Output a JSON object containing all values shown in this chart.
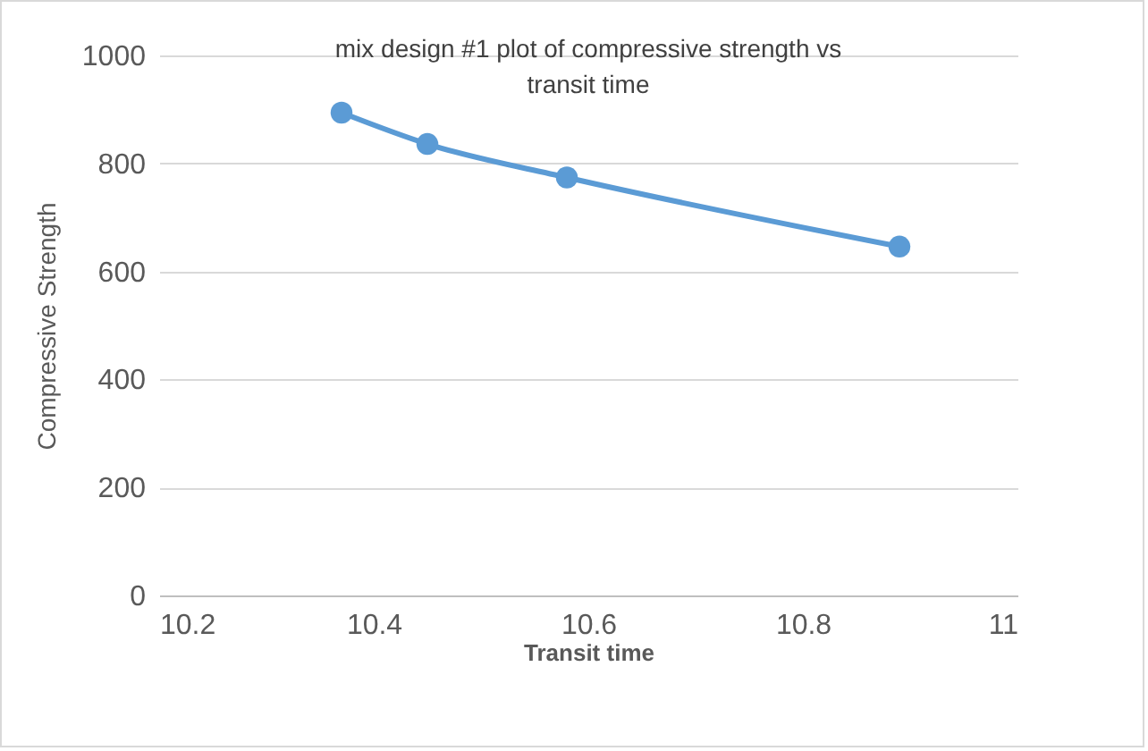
{
  "chart_data": {
    "type": "line",
    "title": "mix design #1 plot of compressive strength vs transit time",
    "xlabel": "Transit time",
    "ylabel": "Compressive Strength",
    "x": [
      10.37,
      10.45,
      10.58,
      10.89
    ],
    "series": [
      {
        "color": "#5b9bd5",
        "values": [
          894,
          836,
          774,
          646
        ]
      }
    ],
    "xlim": [
      10.2,
      11
    ],
    "xticks": [
      10.2,
      10.4,
      10.6,
      10.8,
      11
    ],
    "ylim": [
      0,
      1000
    ],
    "yticks": [
      0,
      200,
      400,
      600,
      800,
      1000
    ],
    "grid": "y",
    "marker": "circle",
    "line_style": "solid"
  }
}
